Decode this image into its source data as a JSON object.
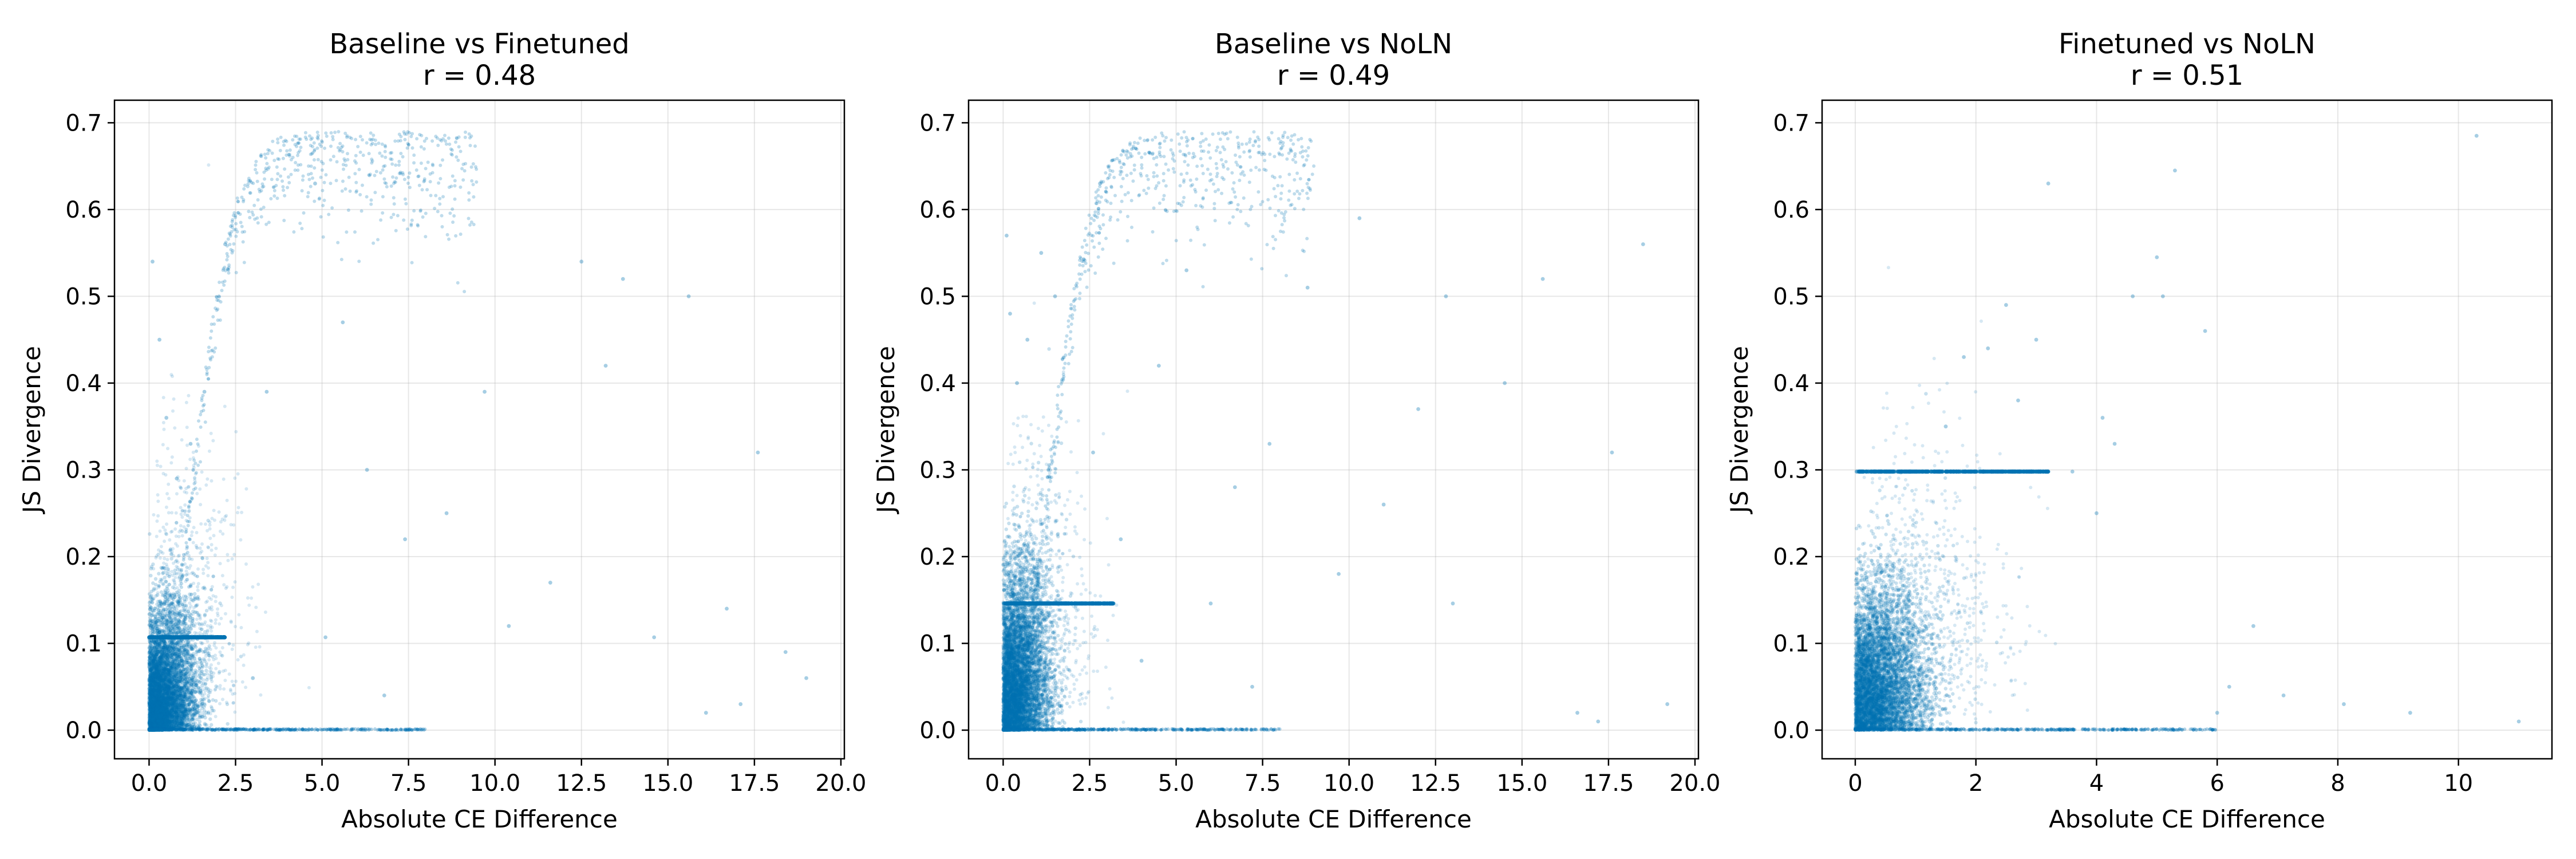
{
  "chart_data": [
    {
      "type": "scatter",
      "title": "Baseline vs Finetuned",
      "subtitle": "r = 0.48",
      "xlabel": "Absolute CE Difference",
      "ylabel": "JS Divergence",
      "xlim": [
        -1.0,
        20.1
      ],
      "ylim": [
        -0.033,
        0.726
      ],
      "xticks": [
        0.0,
        2.5,
        5.0,
        7.5,
        10.0,
        12.5,
        15.0,
        17.5,
        20.0
      ],
      "xtick_labels": [
        "0.0",
        "2.5",
        "5.0",
        "7.5",
        "10.0",
        "12.5",
        "15.0",
        "17.5",
        "20.0"
      ],
      "yticks": [
        0.0,
        0.1,
        0.2,
        0.3,
        0.4,
        0.5,
        0.6,
        0.7
      ],
      "ytick_labels": [
        "0.0",
        "0.1",
        "0.2",
        "0.3",
        "0.4",
        "0.5",
        "0.6",
        "0.7"
      ],
      "grid": true,
      "color": "#0072B2",
      "plateau_y": 0.107,
      "plateau_x_max": 2.2,
      "saturation_curve": {
        "k": 0.38,
        "ymax": 0.69,
        "x_max": 9.5
      },
      "core_cluster": {
        "x_mean": 0.6,
        "y_max": 0.16
      },
      "points": [
        [
          0.1,
          0.54
        ],
        [
          0.3,
          0.45
        ],
        [
          0.5,
          0.36
        ],
        [
          0.8,
          0.29
        ],
        [
          1.2,
          0.33
        ],
        [
          1.6,
          0.39
        ],
        [
          2.2,
          0.56
        ],
        [
          3.4,
          0.39
        ],
        [
          4.8,
          0.63
        ],
        [
          5.6,
          0.47
        ],
        [
          6.3,
          0.3
        ],
        [
          7.4,
          0.22
        ],
        [
          8.6,
          0.25
        ],
        [
          9.7,
          0.39
        ],
        [
          10.4,
          0.12
        ],
        [
          11.6,
          0.17
        ],
        [
          12.5,
          0.54
        ],
        [
          13.7,
          0.52
        ],
        [
          14.6,
          0.107
        ],
        [
          15.6,
          0.5
        ],
        [
          16.7,
          0.14
        ],
        [
          17.6,
          0.32
        ],
        [
          18.4,
          0.09
        ],
        [
          19.0,
          0.06
        ],
        [
          5.1,
          0.107
        ],
        [
          13.2,
          0.42
        ],
        [
          16.1,
          0.02
        ],
        [
          17.1,
          0.03
        ],
        [
          3.0,
          0.06
        ],
        [
          6.8,
          0.04
        ]
      ]
    },
    {
      "type": "scatter",
      "title": "Baseline vs NoLN",
      "subtitle": "r = 0.49",
      "xlabel": "Absolute CE Difference",
      "ylabel": "JS Divergence",
      "xlim": [
        -1.0,
        20.1
      ],
      "ylim": [
        -0.033,
        0.726
      ],
      "xticks": [
        0.0,
        2.5,
        5.0,
        7.5,
        10.0,
        12.5,
        15.0,
        17.5,
        20.0
      ],
      "xtick_labels": [
        "0.0",
        "2.5",
        "5.0",
        "7.5",
        "10.0",
        "12.5",
        "15.0",
        "17.5",
        "20.0"
      ],
      "yticks": [
        0.0,
        0.1,
        0.2,
        0.3,
        0.4,
        0.5,
        0.6,
        0.7
      ],
      "ytick_labels": [
        "0.0",
        "0.1",
        "0.2",
        "0.3",
        "0.4",
        "0.5",
        "0.6",
        "0.7"
      ],
      "grid": true,
      "color": "#0072B2",
      "plateau_y": 0.146,
      "plateau_x_max": 3.2,
      "saturation_curve": {
        "k": 0.36,
        "ymax": 0.69,
        "x_max": 9.0
      },
      "core_cluster": {
        "x_mean": 0.55,
        "y_max": 0.22
      },
      "points": [
        [
          0.1,
          0.57
        ],
        [
          0.2,
          0.48
        ],
        [
          0.4,
          0.4
        ],
        [
          0.7,
          0.45
        ],
        [
          1.1,
          0.55
        ],
        [
          1.5,
          0.5
        ],
        [
          2.6,
          0.32
        ],
        [
          3.4,
          0.22
        ],
        [
          4.5,
          0.42
        ],
        [
          5.3,
          0.53
        ],
        [
          6.0,
          0.146
        ],
        [
          6.7,
          0.28
        ],
        [
          7.7,
          0.33
        ],
        [
          8.8,
          0.51
        ],
        [
          9.7,
          0.18
        ],
        [
          11.0,
          0.26
        ],
        [
          12.0,
          0.37
        ],
        [
          13.0,
          0.146
        ],
        [
          14.5,
          0.4
        ],
        [
          15.6,
          0.52
        ],
        [
          16.6,
          0.02
        ],
        [
          17.2,
          0.01
        ],
        [
          17.6,
          0.32
        ],
        [
          18.5,
          0.56
        ],
        [
          19.2,
          0.03
        ],
        [
          12.8,
          0.5
        ],
        [
          10.3,
          0.59
        ],
        [
          4.0,
          0.08
        ],
        [
          7.2,
          0.05
        ],
        [
          2.8,
          0.63
        ]
      ]
    },
    {
      "type": "scatter",
      "title": "Finetuned vs NoLN",
      "subtitle": "r = 0.51",
      "xlabel": "Absolute CE Difference",
      "ylabel": "JS Divergence",
      "xlim": [
        -0.55,
        11.55
      ],
      "ylim": [
        -0.033,
        0.726
      ],
      "xticks": [
        0,
        2,
        4,
        6,
        8,
        10
      ],
      "xtick_labels": [
        "0",
        "2",
        "4",
        "6",
        "8",
        "10"
      ],
      "yticks": [
        0.0,
        0.1,
        0.2,
        0.3,
        0.4,
        0.5,
        0.6,
        0.7
      ],
      "ytick_labels": [
        "0.0",
        "0.1",
        "0.2",
        "0.3",
        "0.4",
        "0.5",
        "0.6",
        "0.7"
      ],
      "grid": true,
      "color": "#0072B2",
      "plateau_y": 0.298,
      "plateau_x_max": 3.2,
      "saturation_curve": null,
      "core_cluster": {
        "x_mean": 0.5,
        "y_max": 0.2
      },
      "points": [
        [
          10.3,
          0.685
        ],
        [
          5.3,
          0.645
        ],
        [
          3.2,
          0.63
        ],
        [
          4.6,
          0.5
        ],
        [
          5.0,
          0.545
        ],
        [
          5.8,
          0.46
        ],
        [
          2.5,
          0.49
        ],
        [
          3.0,
          0.45
        ],
        [
          2.7,
          0.38
        ],
        [
          4.1,
          0.36
        ],
        [
          5.1,
          0.5
        ],
        [
          1.8,
          0.43
        ],
        [
          4.3,
          0.33
        ],
        [
          6.2,
          0.05
        ],
        [
          7.1,
          0.04
        ],
        [
          8.1,
          0.03
        ],
        [
          9.2,
          0.02
        ],
        [
          11.0,
          0.01
        ],
        [
          6.6,
          0.12
        ],
        [
          3.6,
          0.298
        ],
        [
          4.0,
          0.25
        ],
        [
          2.2,
          0.44
        ],
        [
          1.5,
          0.35
        ],
        [
          6.0,
          0.02
        ]
      ]
    }
  ]
}
